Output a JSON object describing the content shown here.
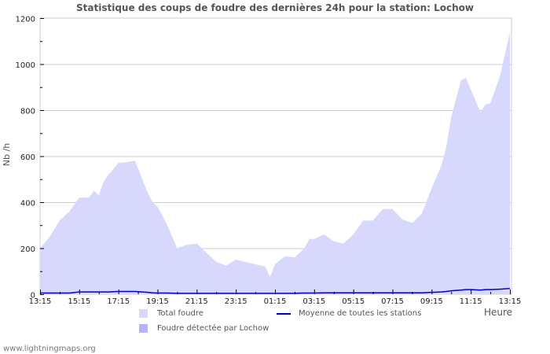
{
  "title": "Statistique des coups de foudre des dernières 24h pour la station: Lochow",
  "footer": "www.lightningmaps.org",
  "colors": {
    "total_fill": "#d8d8fc",
    "detected_fill": "#b4b4f8",
    "average_line": "#0000cc",
    "grid": "#cccccc",
    "text": "#555555"
  },
  "legend": {
    "total": "Total foudre",
    "detected": "Foudre détectée par Lochow",
    "average": "Moyenne de toutes les stations"
  },
  "chart_data": {
    "type": "area",
    "title": "Statistique des coups de foudre des dernières 24h pour la station: Lochow",
    "xlabel": "Heure",
    "ylabel": "Nb /h",
    "ylim": [
      0,
      1200
    ],
    "yticks": [
      0,
      200,
      400,
      600,
      800,
      1000,
      1200
    ],
    "xticks": [
      "13:15",
      "15:15",
      "17:15",
      "19:15",
      "21:15",
      "23:15",
      "01:15",
      "03:15",
      "05:15",
      "07:15",
      "09:15",
      "11:15",
      "13:15"
    ],
    "grid": true,
    "legend_position": "bottom",
    "x_hours_from_start": [
      0,
      0.5,
      1,
      1.5,
      2,
      2.5,
      2.75,
      3,
      3.25,
      3.5,
      4,
      4.5,
      4.85,
      5.5,
      5.75,
      6,
      6.5,
      7,
      7.5,
      8,
      8.5,
      9,
      9.5,
      10,
      10.5,
      11,
      11.5,
      11.75,
      12,
      12.5,
      13,
      13.5,
      13.75,
      14,
      14.5,
      15,
      15.5,
      16,
      16.5,
      17,
      17.5,
      18,
      18.5,
      19,
      19.5,
      20,
      20.5,
      20.75,
      21,
      21.5,
      21.75,
      22,
      22.5,
      22.75,
      23,
      23.5,
      24
    ],
    "series": [
      {
        "name": "Total foudre",
        "values": [
          200,
          250,
          320,
          360,
          420,
          420,
          450,
          430,
          490,
          520,
          570,
          575,
          580,
          440,
          400,
          380,
          300,
          200,
          215,
          220,
          180,
          140,
          125,
          150,
          140,
          130,
          120,
          75,
          130,
          165,
          160,
          200,
          240,
          240,
          260,
          230,
          220,
          260,
          320,
          320,
          370,
          370,
          325,
          310,
          350,
          460,
          560,
          640,
          770,
          930,
          940,
          890,
          790,
          825,
          830,
          950,
          1140
        ]
      },
      {
        "name": "Moyenne de toutes les stations",
        "values": [
          5,
          5,
          5,
          5,
          10,
          10,
          10,
          10,
          10,
          10,
          12,
          12,
          12,
          8,
          6,
          5,
          5,
          4,
          4,
          4,
          4,
          4,
          4,
          4,
          4,
          4,
          4,
          4,
          4,
          4,
          4,
          5,
          5,
          5,
          6,
          6,
          6,
          6,
          6,
          6,
          6,
          6,
          6,
          6,
          6,
          8,
          10,
          12,
          15,
          18,
          20,
          20,
          18,
          20,
          20,
          22,
          25
        ]
      },
      {
        "name": "Foudre détectée par Lochow",
        "values": []
      }
    ]
  }
}
